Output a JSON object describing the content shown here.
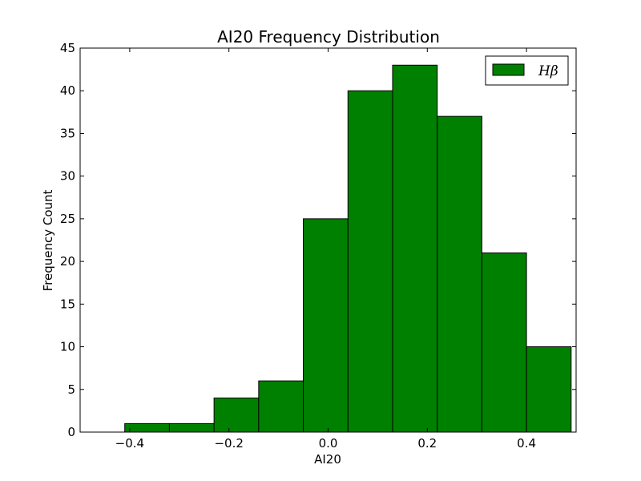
{
  "chart_data": {
    "type": "bar",
    "title": "AI20 Frequency Distribution",
    "xlabel": "AI20",
    "ylabel": "Frequency Count",
    "xlim": [
      -0.5,
      0.5
    ],
    "ylim": [
      0,
      45
    ],
    "x_ticks": [
      "−0.4",
      "−0.2",
      "0.0",
      "0.2",
      "0.4"
    ],
    "y_ticks": [
      "0",
      "5",
      "10",
      "15",
      "20",
      "25",
      "30",
      "35",
      "40",
      "45"
    ],
    "bin_edges": [
      -0.41,
      -0.32,
      -0.23,
      -0.14,
      -0.05,
      0.04,
      0.13,
      0.22,
      0.31,
      0.4,
      0.49
    ],
    "series": [
      {
        "name": "Hβ",
        "color": "#008000",
        "values": [
          1,
          1,
          4,
          6,
          25,
          40,
          43,
          37,
          21,
          10
        ]
      }
    ],
    "grid": false,
    "legend_position": "top-right"
  }
}
